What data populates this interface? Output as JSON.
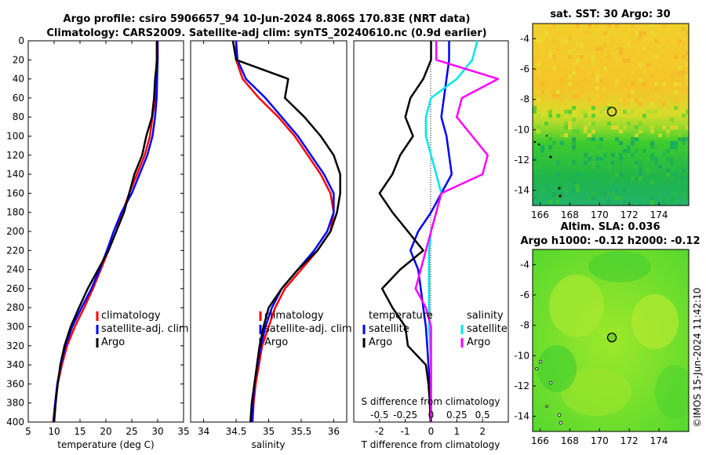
{
  "title_line1": "Argo profile: csiro 5906657_94 10-Jun-2024 8.806S 170.83E (NRT data)",
  "title_line2": "Climatology: CARS2009. Satellite-adj clim: synTS_20240610.nc (0.9d earlier)",
  "footer": "©IMOS 15-Jun-2024 11:42:10",
  "colors": {
    "climatology": "#ff0000",
    "satellite": "#0000ff",
    "argo": "#000000",
    "sat_salinity": "#00e5ee",
    "argo_salinity": "#ff00ff"
  },
  "chart_data": [
    {
      "type": "line",
      "name": "temperature",
      "xlabel": "temperature (deg C)",
      "xlim": [
        5,
        35
      ],
      "ylim": [
        400,
        0
      ],
      "xticks": [
        "5",
        "10",
        "15",
        "20",
        "25",
        "30",
        "35"
      ],
      "yticks": [
        "0",
        "20",
        "40",
        "60",
        "80",
        "100",
        "120",
        "140",
        "160",
        "180",
        "200",
        "220",
        "240",
        "260",
        "280",
        "300",
        "320",
        "340",
        "360",
        "380",
        "400"
      ],
      "legend": [
        "climatology",
        "satellite-adj. clim",
        "Argo"
      ],
      "series": [
        {
          "name": "climatology",
          "color": "#ff0000",
          "x": [
            29.8,
            29.8,
            29.7,
            29.5,
            29.0,
            28.5,
            27.5,
            26.0,
            24.5,
            23.2,
            22.0,
            20.5,
            19.0,
            17.5,
            15.8,
            14.0,
            12.5,
            11.5,
            10.7,
            10.2,
            9.8
          ],
          "y": [
            0,
            20,
            40,
            60,
            80,
            100,
            120,
            140,
            160,
            180,
            200,
            220,
            240,
            260,
            280,
            300,
            320,
            340,
            360,
            380,
            400
          ]
        },
        {
          "name": "satellite-adj. clim",
          "color": "#0000ff",
          "x": [
            30.0,
            30.0,
            29.9,
            29.8,
            29.5,
            29.0,
            28.0,
            26.5,
            25.0,
            23.0,
            21.5,
            20.2,
            18.8,
            17.2,
            15.3,
            13.5,
            12.2,
            11.3,
            10.6,
            10.2,
            9.9
          ],
          "y": [
            0,
            20,
            40,
            60,
            80,
            100,
            120,
            140,
            160,
            180,
            200,
            220,
            240,
            260,
            280,
            300,
            320,
            340,
            360,
            380,
            400
          ]
        },
        {
          "name": "Argo",
          "color": "#000000",
          "x": [
            29.9,
            29.9,
            29.5,
            29.3,
            28.9,
            27.8,
            27.0,
            25.5,
            24.5,
            23.5,
            22.0,
            20.5,
            18.5,
            16.5,
            14.8,
            13.2,
            12.0,
            11.2,
            10.7,
            10.3,
            10.0
          ],
          "y": [
            0,
            20,
            40,
            60,
            80,
            100,
            120,
            140,
            160,
            180,
            200,
            220,
            240,
            260,
            280,
            300,
            320,
            340,
            360,
            380,
            400
          ]
        }
      ]
    },
    {
      "type": "line",
      "name": "salinity",
      "xlabel": "salinity",
      "xlim": [
        33.8,
        36.2
      ],
      "ylim": [
        400,
        0
      ],
      "xticks": [
        "34",
        "34.5",
        "35",
        "35.5",
        "36"
      ],
      "xtick_values": [
        34,
        34.5,
        35,
        35.5,
        36
      ],
      "legend": [
        "climatology",
        "satellite-adj. clim",
        "Argo"
      ],
      "series": [
        {
          "name": "climatology",
          "color": "#ff0000",
          "x": [
            34.5,
            34.5,
            34.6,
            34.85,
            35.15,
            35.4,
            35.6,
            35.8,
            35.95,
            36.0,
            35.95,
            35.75,
            35.5,
            35.25,
            35.1,
            35.0,
            34.9,
            34.85,
            34.8,
            34.77,
            34.75
          ],
          "y": [
            0,
            20,
            40,
            60,
            80,
            100,
            120,
            140,
            160,
            180,
            200,
            220,
            240,
            260,
            280,
            300,
            320,
            340,
            360,
            380,
            400
          ]
        },
        {
          "name": "satellite-adj. clim",
          "color": "#0000ff",
          "x": [
            34.5,
            34.52,
            34.65,
            34.95,
            35.2,
            35.45,
            35.65,
            35.85,
            36.0,
            36.0,
            35.9,
            35.7,
            35.45,
            35.2,
            35.05,
            34.95,
            34.88,
            34.83,
            34.78,
            34.76,
            34.75
          ],
          "y": [
            0,
            20,
            40,
            60,
            80,
            100,
            120,
            140,
            160,
            180,
            200,
            220,
            240,
            260,
            280,
            300,
            320,
            340,
            360,
            380,
            400
          ]
        },
        {
          "name": "Argo",
          "color": "#000000",
          "x": [
            34.45,
            34.5,
            35.3,
            35.25,
            35.55,
            35.8,
            36.0,
            36.1,
            36.1,
            36.05,
            35.95,
            35.75,
            35.45,
            35.2,
            35.0,
            34.92,
            34.86,
            34.82,
            34.78,
            34.74,
            34.72
          ],
          "y": [
            0,
            20,
            40,
            60,
            80,
            100,
            120,
            140,
            160,
            180,
            200,
            220,
            240,
            260,
            280,
            300,
            320,
            340,
            360,
            380,
            400
          ]
        }
      ]
    },
    {
      "type": "line",
      "name": "difference from climatology",
      "xlabel": "T difference from climatology",
      "xlabel_top": "S difference from climatology",
      "xlim": [
        -3,
        3
      ],
      "ylim": [
        400,
        0
      ],
      "xticks": [
        "-2",
        "-1",
        "0",
        "1",
        "2"
      ],
      "xtick_values": [
        -2,
        -1,
        0,
        1,
        2
      ],
      "s_xticks": [
        "-0.5",
        "-0.25",
        "0",
        "0.25",
        "0.5"
      ],
      "s_xtick_values": [
        -0.5,
        -0.25,
        0,
        0.25,
        0.5
      ],
      "s_xlim": [
        -0.75,
        0.75
      ],
      "legend_left_title": "temperature",
      "legend_right_title": "salinity",
      "legend_left": [
        "satellite",
        "Argo"
      ],
      "legend_right": [
        "satellite",
        "Argo"
      ],
      "series": [
        {
          "name": "T satellite",
          "color": "#0000ff",
          "axis": "T",
          "x": [
            0.7,
            0.7,
            0.6,
            0.5,
            0.4,
            0.6,
            0.7,
            0.8,
            0.4,
            0.0,
            -0.5,
            -0.8,
            -0.5,
            -0.4,
            -0.3,
            -0.2,
            -0.15,
            -0.1,
            -0.05,
            0.0,
            0.0
          ],
          "y": [
            0,
            20,
            40,
            60,
            80,
            100,
            120,
            140,
            160,
            180,
            200,
            220,
            240,
            260,
            280,
            300,
            320,
            340,
            360,
            380,
            400
          ]
        },
        {
          "name": "T Argo",
          "color": "#000000",
          "axis": "T",
          "x": [
            0.0,
            0.0,
            -0.3,
            -0.8,
            -1.0,
            -0.7,
            -1.2,
            -1.5,
            -2.0,
            -1.5,
            -0.9,
            -0.3,
            -1.2,
            -1.9,
            -1.5,
            -1.0,
            -0.9,
            -0.2,
            -0.1,
            -0.05,
            -0.02
          ],
          "y": [
            0,
            20,
            40,
            60,
            80,
            100,
            120,
            140,
            160,
            180,
            200,
            220,
            240,
            260,
            280,
            300,
            320,
            340,
            360,
            380,
            400
          ]
        },
        {
          "name": "S satellite",
          "color": "#00e5ee",
          "axis": "S",
          "x": [
            0.45,
            0.4,
            0.25,
            0.0,
            -0.05,
            -0.05,
            0.0,
            0.05,
            0.1,
            0.05,
            0.0,
            -0.02,
            -0.02,
            -0.02,
            -0.02,
            -0.02,
            -0.01,
            0.0,
            0.0,
            0.0,
            0.0
          ],
          "y": [
            0,
            20,
            40,
            60,
            80,
            100,
            120,
            140,
            160,
            180,
            200,
            220,
            240,
            260,
            280,
            300,
            320,
            340,
            360,
            380,
            400
          ]
        },
        {
          "name": "S Argo",
          "color": "#ff00ff",
          "axis": "S",
          "x": [
            0.05,
            0.05,
            0.65,
            0.3,
            0.25,
            0.4,
            0.55,
            0.5,
            0.1,
            0.05,
            0.0,
            -0.05,
            -0.1,
            -0.15,
            -0.05,
            0.0,
            0.0,
            0.0,
            0.0,
            0.0,
            0.0
          ],
          "y": [
            0,
            20,
            40,
            60,
            80,
            100,
            120,
            140,
            160,
            180,
            200,
            220,
            240,
            260,
            280,
            300,
            320,
            340,
            360,
            380,
            400
          ]
        }
      ]
    },
    {
      "type": "heatmap",
      "name": "sat SST",
      "title": "sat. SST: 30 Argo: 30",
      "xlim": [
        165.5,
        176
      ],
      "ylim": [
        -15,
        -3
      ],
      "xticks": [
        "166",
        "168",
        "170",
        "172",
        "174"
      ],
      "xtick_values": [
        166,
        168,
        170,
        172,
        174
      ],
      "yticks": [
        "-4",
        "-6",
        "-8",
        "-10",
        "-12",
        "-14"
      ],
      "ytick_values": [
        -4,
        -6,
        -8,
        -10,
        -12,
        -14
      ],
      "marker": {
        "lon": 170.83,
        "lat": -8.806
      }
    },
    {
      "type": "heatmap",
      "name": "Altim SLA",
      "title_line1": "Altim. SLA: 0.036",
      "title_line2": "Argo h1000: -0.12 h2000: -0.12",
      "xlim": [
        165.5,
        176
      ],
      "ylim": [
        -15,
        -3
      ],
      "xticks": [
        "166",
        "168",
        "170",
        "172",
        "174"
      ],
      "xtick_values": [
        166,
        168,
        170,
        172,
        174
      ],
      "yticks": [
        "-4",
        "-6",
        "-8",
        "-10",
        "-12",
        "-14"
      ],
      "ytick_values": [
        -4,
        -6,
        -8,
        -10,
        -12,
        -14
      ],
      "marker": {
        "lon": 170.83,
        "lat": -8.806
      }
    }
  ]
}
